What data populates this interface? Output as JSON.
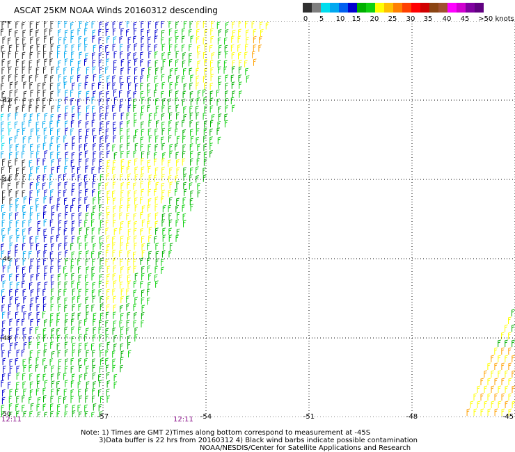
{
  "title": "ASCAT 25KM NOAA Winds 20160312 descending",
  "colorbar": {
    "colors": [
      "#303030",
      "#7f7f7f",
      "#00ddee",
      "#00a8f0",
      "#0060f0",
      "#0000d0",
      "#00b000",
      "#10d010",
      "#ffff00",
      "#ffc000",
      "#ff8000",
      "#ff4000",
      "#ff0000",
      "#d00000",
      "#8b4513",
      "#a05030",
      "#ff00ff",
      "#d000d0",
      "#8000a0",
      "#600080"
    ],
    "labels": [
      "0",
      "5",
      "10",
      "15",
      "20",
      "25",
      "30",
      "35",
      "40",
      "45",
      ">50 knots"
    ]
  },
  "map": {
    "lat_labels": [
      "-40",
      "-42",
      "-44",
      "-46",
      "-48",
      "-50"
    ],
    "lon_labels": [
      "-57",
      "-54",
      "-51",
      "-48",
      "-45"
    ],
    "corner_lat_label": "-50",
    "lat_range": [
      -40,
      -50
    ],
    "lon_range": [
      -60,
      -45
    ],
    "barb_colors": {
      "gray": "#303030",
      "cyan": "#00ddee",
      "sky": "#00a8f0",
      "blue": "#0000d0",
      "green": "#00b000",
      "bright_green": "#10d010",
      "yellow": "#ffff00",
      "orange": "#ffa000"
    }
  },
  "times": [
    "12:11",
    "12:11"
  ],
  "notes": {
    "line1": "Note: 1) Times are GMT  2)Times along bottom correspond to measurement at -45S",
    "line2": "3)Data buffer is 22 hrs from 20160312  4) Black wind barbs indicate possible contamination",
    "line3": "NOAA/NESDIS/Center for Satellite Applications and Research"
  }
}
